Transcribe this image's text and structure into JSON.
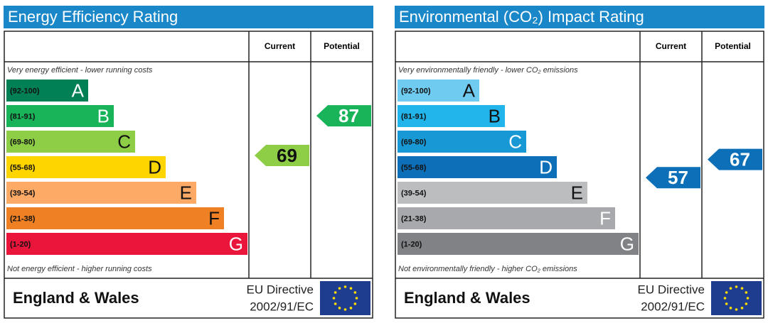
{
  "chart_data": [
    {
      "type": "rating",
      "title": "Energy Efficiency Rating",
      "columns": [
        "Current",
        "Potential"
      ],
      "top_note": "Very energy efficient - lower running costs",
      "bottom_note": "Not energy efficient - higher running costs",
      "bands": [
        {
          "label": "(92-100)",
          "min": 92,
          "max": 100,
          "letter": "A",
          "color": "#008054",
          "text_color": "#ffffff"
        },
        {
          "label": "(81-91)",
          "min": 81,
          "max": 91,
          "letter": "B",
          "color": "#19b459",
          "text_color": "#ffffff"
        },
        {
          "label": "(69-80)",
          "min": 69,
          "max": 80,
          "letter": "C",
          "color": "#8dce46",
          "text_color": "#111111"
        },
        {
          "label": "(55-68)",
          "min": 55,
          "max": 68,
          "letter": "D",
          "color": "#ffd500",
          "text_color": "#111111"
        },
        {
          "label": "(39-54)",
          "min": 39,
          "max": 54,
          "letter": "E",
          "color": "#fcaa65",
          "text_color": "#111111"
        },
        {
          "label": "(21-38)",
          "min": 21,
          "max": 38,
          "letter": "F",
          "color": "#ef8023",
          "text_color": "#111111"
        },
        {
          "label": "(1-20)",
          "min": 1,
          "max": 20,
          "letter": "G",
          "color": "#e9153b",
          "text_color": "#ffffff"
        }
      ],
      "current": 69,
      "potential": 87,
      "region": "England & Wales",
      "directive": "EU Directive",
      "directive_code": "2002/91/EC"
    },
    {
      "type": "rating",
      "title": "Environmental (CO₂) Impact Rating",
      "columns": [
        "Current",
        "Potential"
      ],
      "top_note": "Very environmentally friendly - lower CO₂ emissions",
      "bottom_note": "Not environmentally friendly - higher CO₂ emissions",
      "bands": [
        {
          "label": "(92-100)",
          "min": 92,
          "max": 100,
          "letter": "A",
          "color": "#6fcbf0",
          "text_color": "#111111"
        },
        {
          "label": "(81-91)",
          "min": 81,
          "max": 91,
          "letter": "B",
          "color": "#22b5ec",
          "text_color": "#111111"
        },
        {
          "label": "(69-80)",
          "min": 69,
          "max": 80,
          "letter": "C",
          "color": "#1898d5",
          "text_color": "#ffffff"
        },
        {
          "label": "(55-68)",
          "min": 55,
          "max": 68,
          "letter": "D",
          "color": "#0c6fb8",
          "text_color": "#ffffff"
        },
        {
          "label": "(39-54)",
          "min": 39,
          "max": 54,
          "letter": "E",
          "color": "#bbbdbf",
          "text_color": "#111111"
        },
        {
          "label": "(21-38)",
          "min": 21,
          "max": 38,
          "letter": "F",
          "color": "#a7a9ac",
          "text_color": "#ffffff"
        },
        {
          "label": "(1-20)",
          "min": 1,
          "max": 20,
          "letter": "G",
          "color": "#808285",
          "text_color": "#ffffff"
        }
      ],
      "current": 57,
      "potential": 67,
      "region": "England & Wales",
      "directive": "EU Directive",
      "directive_code": "2002/91/EC"
    }
  ]
}
